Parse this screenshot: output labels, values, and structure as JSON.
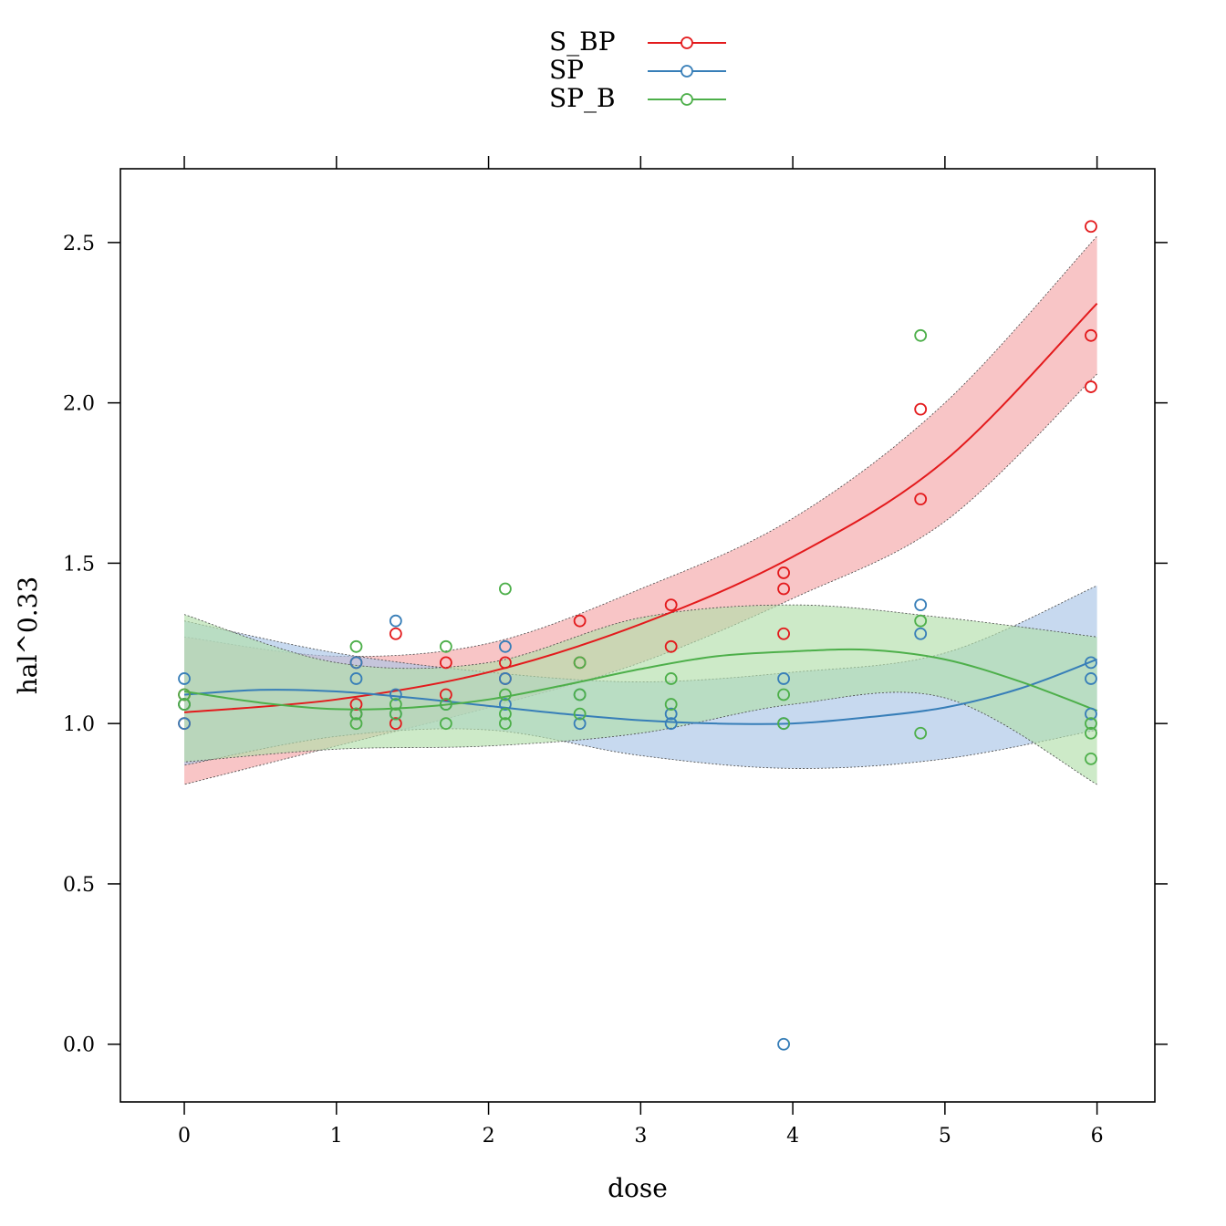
{
  "chart_data": {
    "type": "scatter",
    "title": "",
    "xlabel": "dose",
    "ylabel": "hal^0.33",
    "xlim": [
      -0.42,
      6.38
    ],
    "ylim": [
      -0.18,
      2.73
    ],
    "x_ticks": [
      "0",
      "1",
      "2",
      "3",
      "4",
      "5",
      "6"
    ],
    "y_ticks": [
      "0.0",
      "0.5",
      "1.0",
      "1.5",
      "2.0",
      "2.5"
    ],
    "legend_position": "top",
    "series": [
      {
        "name": "S_BP",
        "color": "#e31a1c",
        "band_color": "#f4a6a8",
        "points": [
          {
            "x": 0,
            "y": 1.0
          },
          {
            "x": 0,
            "y": 1.06
          },
          {
            "x": 0,
            "y": 1.09
          },
          {
            "x": 1.13,
            "y": 1.19
          },
          {
            "x": 1.13,
            "y": 1.06
          },
          {
            "x": 1.13,
            "y": 1.03
          },
          {
            "x": 1.39,
            "y": 1.28
          },
          {
            "x": 1.39,
            "y": 1.0
          },
          {
            "x": 1.72,
            "y": 1.19
          },
          {
            "x": 1.72,
            "y": 1.09
          },
          {
            "x": 2.11,
            "y": 1.19
          },
          {
            "x": 2.11,
            "y": 1.14
          },
          {
            "x": 2.6,
            "y": 1.32
          },
          {
            "x": 2.6,
            "y": 1.19
          },
          {
            "x": 3.2,
            "y": 1.37
          },
          {
            "x": 3.2,
            "y": 1.24
          },
          {
            "x": 3.94,
            "y": 1.47
          },
          {
            "x": 3.94,
            "y": 1.42
          },
          {
            "x": 3.94,
            "y": 1.28
          },
          {
            "x": 4.84,
            "y": 1.98
          },
          {
            "x": 4.84,
            "y": 1.7
          },
          {
            "x": 5.96,
            "y": 2.55
          },
          {
            "x": 5.96,
            "y": 2.21
          },
          {
            "x": 5.96,
            "y": 2.05
          }
        ],
        "fit": {
          "x": [
            0,
            1,
            2,
            3,
            4,
            5,
            6
          ],
          "y": [
            1.035,
            1.075,
            1.16,
            1.31,
            1.52,
            1.82,
            2.31
          ]
        },
        "band": {
          "x": [
            0,
            1,
            2,
            3,
            4,
            5,
            6
          ],
          "lower": [
            0.81,
            0.93,
            1.05,
            1.19,
            1.39,
            1.63,
            2.09
          ],
          "upper": [
            1.27,
            1.21,
            1.25,
            1.42,
            1.64,
            2.0,
            2.52
          ]
        }
      },
      {
        "name": "SP",
        "color": "#377eb8",
        "band_color": "#a9c5e6",
        "points": [
          {
            "x": 0,
            "y": 1.14
          },
          {
            "x": 0,
            "y": 1.06
          },
          {
            "x": 0,
            "y": 1.0
          },
          {
            "x": 1.13,
            "y": 1.19
          },
          {
            "x": 1.13,
            "y": 1.14
          },
          {
            "x": 1.13,
            "y": 1.03
          },
          {
            "x": 1.39,
            "y": 1.32
          },
          {
            "x": 1.39,
            "y": 1.09
          },
          {
            "x": 1.39,
            "y": 1.03
          },
          {
            "x": 1.72,
            "y": 1.06
          },
          {
            "x": 2.11,
            "y": 1.24
          },
          {
            "x": 2.11,
            "y": 1.14
          },
          {
            "x": 2.11,
            "y": 1.06
          },
          {
            "x": 2.6,
            "y": 1.09
          },
          {
            "x": 2.6,
            "y": 1.0
          },
          {
            "x": 3.2,
            "y": 1.03
          },
          {
            "x": 3.2,
            "y": 1.0
          },
          {
            "x": 3.94,
            "y": 1.14
          },
          {
            "x": 3.94,
            "y": 1.0
          },
          {
            "x": 3.94,
            "y": 0.0
          },
          {
            "x": 4.84,
            "y": 1.37
          },
          {
            "x": 4.84,
            "y": 1.28
          },
          {
            "x": 5.96,
            "y": 1.19
          },
          {
            "x": 5.96,
            "y": 1.14
          },
          {
            "x": 5.96,
            "y": 1.03
          }
        ],
        "fit": {
          "x": [
            0,
            0.5,
            1,
            1.5,
            2,
            2.5,
            3,
            3.5,
            4,
            4.5,
            5,
            5.5,
            6
          ],
          "y": [
            1.09,
            1.105,
            1.1,
            1.08,
            1.055,
            1.03,
            1.01,
            1.0,
            1.0,
            1.02,
            1.05,
            1.11,
            1.2
          ]
        },
        "band": {
          "x": [
            0,
            1,
            2,
            3,
            4,
            5,
            6
          ],
          "lower": [
            0.87,
            0.96,
            0.98,
            0.9,
            0.86,
            0.89,
            0.98
          ],
          "upper": [
            1.32,
            1.22,
            1.16,
            1.13,
            1.16,
            1.22,
            1.43
          ]
        }
      },
      {
        "name": "SP_B",
        "color": "#4daf4a",
        "band_color": "#b2dfab",
        "points": [
          {
            "x": 0,
            "y": 1.09
          },
          {
            "x": 0,
            "y": 1.06
          },
          {
            "x": 1.13,
            "y": 1.24
          },
          {
            "x": 1.13,
            "y": 1.03
          },
          {
            "x": 1.13,
            "y": 1.0
          },
          {
            "x": 1.39,
            "y": 1.06
          },
          {
            "x": 1.39,
            "y": 1.03
          },
          {
            "x": 1.72,
            "y": 1.24
          },
          {
            "x": 1.72,
            "y": 1.06
          },
          {
            "x": 1.72,
            "y": 1.0
          },
          {
            "x": 2.11,
            "y": 1.42
          },
          {
            "x": 2.11,
            "y": 1.09
          },
          {
            "x": 2.11,
            "y": 1.03
          },
          {
            "x": 2.11,
            "y": 1.0
          },
          {
            "x": 2.6,
            "y": 1.19
          },
          {
            "x": 2.6,
            "y": 1.09
          },
          {
            "x": 2.6,
            "y": 1.03
          },
          {
            "x": 3.2,
            "y": 1.14
          },
          {
            "x": 3.2,
            "y": 1.06
          },
          {
            "x": 3.94,
            "y": 1.09
          },
          {
            "x": 3.94,
            "y": 1.0
          },
          {
            "x": 4.84,
            "y": 2.21
          },
          {
            "x": 4.84,
            "y": 1.32
          },
          {
            "x": 4.84,
            "y": 0.97
          },
          {
            "x": 5.96,
            "y": 1.0
          },
          {
            "x": 5.96,
            "y": 0.97
          },
          {
            "x": 5.96,
            "y": 0.89
          }
        ],
        "fit": {
          "x": [
            0,
            0.5,
            1,
            1.5,
            2,
            2.5,
            3,
            3.5,
            4,
            4.5,
            5,
            5.5,
            6
          ],
          "y": [
            1.1,
            1.065,
            1.045,
            1.05,
            1.075,
            1.12,
            1.17,
            1.21,
            1.225,
            1.23,
            1.2,
            1.13,
            1.04
          ]
        },
        "band": {
          "x": [
            0,
            1,
            2,
            3,
            4,
            5,
            6
          ],
          "lower": [
            0.88,
            0.92,
            0.93,
            0.97,
            1.06,
            1.08,
            0.81
          ],
          "upper": [
            1.34,
            1.19,
            1.19,
            1.33,
            1.37,
            1.33,
            1.27
          ]
        }
      }
    ]
  }
}
